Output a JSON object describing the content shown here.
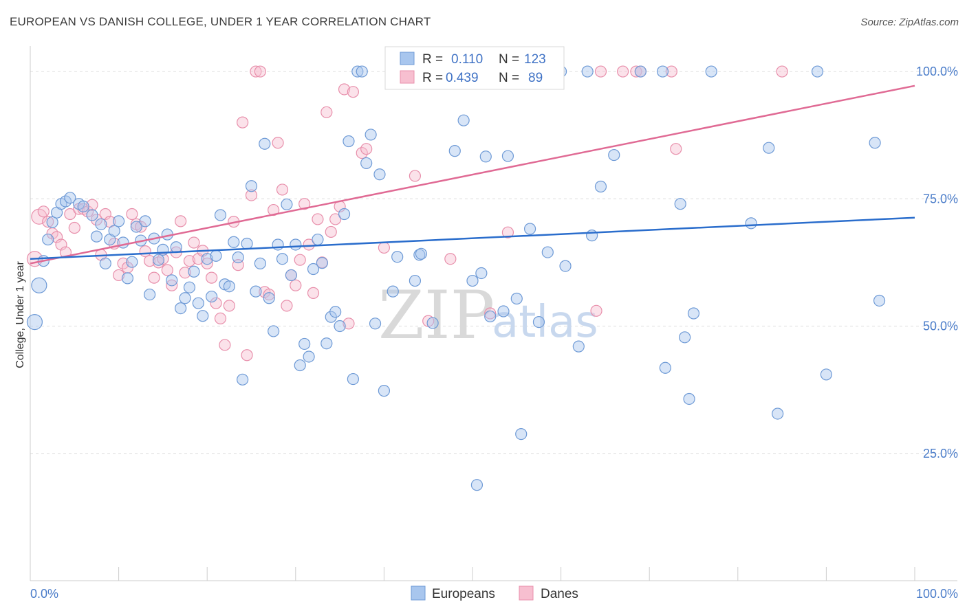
{
  "title": "EUROPEAN VS DANISH COLLEGE, UNDER 1 YEAR CORRELATION CHART",
  "source": "Source: ZipAtlas.com",
  "watermark": {
    "zip": "ZIP",
    "atlas": "atlas"
  },
  "colors": {
    "europeans_fill": "#a8c6ee",
    "europeans_stroke": "#6e9ad6",
    "europeans_line": "#2a6dcc",
    "danes_fill": "#f7bfd0",
    "danes_stroke": "#e88fab",
    "danes_line": "#e06a94",
    "axis_text": "#4a7cc9",
    "grid": "#dddddd"
  },
  "legend": {
    "row1": {
      "r_label": "R =",
      "r_value": "0.110",
      "n_label": "N =",
      "n_value": "123"
    },
    "row2": {
      "r_label": "R =",
      "r_value": "0.439",
      "n_label": "N =",
      "n_value": "89"
    }
  },
  "bottom_legend": {
    "europeans": "Europeans",
    "danes": "Danes"
  },
  "chart_data": {
    "type": "scatter",
    "title": "EUROPEAN VS DANISH COLLEGE, UNDER 1 YEAR CORRELATION CHART",
    "xlabel": "",
    "ylabel": "College, Under 1 year",
    "xlim": [
      0,
      100
    ],
    "ylim": [
      0,
      105
    ],
    "x_tick_labels": [
      "0.0%",
      "100.0%"
    ],
    "y_ticks": [
      25,
      50,
      75,
      100
    ],
    "y_tick_labels": [
      "25.0%",
      "50.0%",
      "75.0%",
      "100.0%"
    ],
    "grid": true,
    "legend_position": "top-center",
    "series": [
      {
        "name": "Europeans",
        "r": 0.11,
        "n": 123,
        "trend": {
          "x": [
            0,
            100
          ],
          "y": [
            63.2,
            71.3
          ]
        },
        "points": [
          [
            0.5,
            50.8
          ],
          [
            1.0,
            58.0
          ],
          [
            1.5,
            62.8
          ],
          [
            2.0,
            67.0
          ],
          [
            2.5,
            70.4
          ],
          [
            3.0,
            72.3
          ],
          [
            3.5,
            74.0
          ],
          [
            4.0,
            74.5
          ],
          [
            4.5,
            75.2
          ],
          [
            5.5,
            74.0
          ],
          [
            6.0,
            73.5
          ],
          [
            7.0,
            71.8
          ],
          [
            7.5,
            67.6
          ],
          [
            8.0,
            70.0
          ],
          [
            8.5,
            62.3
          ],
          [
            9.0,
            67.0
          ],
          [
            9.5,
            68.7
          ],
          [
            10.0,
            70.6
          ],
          [
            10.5,
            66.4
          ],
          [
            11.0,
            59.4
          ],
          [
            11.5,
            62.6
          ],
          [
            12.0,
            69.5
          ],
          [
            12.5,
            66.8
          ],
          [
            13.0,
            70.6
          ],
          [
            13.5,
            56.2
          ],
          [
            14.0,
            67.2
          ],
          [
            14.5,
            63.0
          ],
          [
            15.0,
            65.0
          ],
          [
            15.5,
            68.0
          ],
          [
            16.0,
            59.0
          ],
          [
            16.5,
            65.5
          ],
          [
            17.0,
            53.5
          ],
          [
            17.5,
            55.5
          ],
          [
            18.0,
            57.6
          ],
          [
            18.5,
            60.7
          ],
          [
            19.0,
            54.5
          ],
          [
            19.5,
            52.0
          ],
          [
            20.0,
            63.2
          ],
          [
            20.5,
            55.8
          ],
          [
            21.0,
            63.8
          ],
          [
            21.5,
            71.8
          ],
          [
            22.0,
            58.2
          ],
          [
            22.5,
            57.8
          ],
          [
            23.0,
            66.5
          ],
          [
            23.5,
            63.5
          ],
          [
            24.0,
            39.5
          ],
          [
            24.5,
            66.2
          ],
          [
            25.0,
            77.5
          ],
          [
            25.5,
            56.8
          ],
          [
            26.0,
            62.3
          ],
          [
            26.5,
            85.8
          ],
          [
            27.0,
            55.5
          ],
          [
            27.5,
            49.0
          ],
          [
            28.0,
            66.0
          ],
          [
            28.5,
            63.2
          ],
          [
            29.0,
            73.9
          ],
          [
            29.5,
            60.0
          ],
          [
            30.0,
            66.0
          ],
          [
            30.5,
            42.3
          ],
          [
            31.0,
            46.5
          ],
          [
            31.5,
            44.0
          ],
          [
            32.0,
            61.2
          ],
          [
            32.5,
            67.0
          ],
          [
            33.0,
            62.4
          ],
          [
            33.5,
            46.6
          ],
          [
            34.0,
            51.8
          ],
          [
            34.5,
            52.8
          ],
          [
            35.0,
            50.0
          ],
          [
            35.5,
            72.0
          ],
          [
            36.0,
            86.3
          ],
          [
            36.5,
            39.6
          ],
          [
            37.0,
            100.0
          ],
          [
            37.5,
            100.0
          ],
          [
            38.0,
            82.0
          ],
          [
            38.5,
            87.6
          ],
          [
            39.0,
            50.5
          ],
          [
            39.5,
            79.8
          ],
          [
            40.0,
            37.3
          ],
          [
            41.0,
            56.8
          ],
          [
            41.5,
            63.6
          ],
          [
            42.0,
            100.0
          ],
          [
            43.5,
            58.9
          ],
          [
            44.0,
            64.0
          ],
          [
            44.2,
            64.2
          ],
          [
            45.0,
            100.0
          ],
          [
            45.5,
            50.6
          ],
          [
            47.0,
            100.0
          ],
          [
            48.0,
            84.4
          ],
          [
            49.0,
            90.4
          ],
          [
            50.0,
            58.9
          ],
          [
            50.5,
            18.8
          ],
          [
            51.0,
            60.4
          ],
          [
            51.5,
            83.3
          ],
          [
            52.0,
            51.9
          ],
          [
            53.5,
            52.9
          ],
          [
            54.0,
            83.4
          ],
          [
            55.0,
            55.4
          ],
          [
            55.5,
            28.8
          ],
          [
            56.5,
            69.1
          ],
          [
            57.5,
            50.8
          ],
          [
            58.5,
            64.5
          ],
          [
            60.0,
            100.0
          ],
          [
            60.5,
            61.8
          ],
          [
            62.0,
            46.0
          ],
          [
            63.0,
            100.0
          ],
          [
            63.5,
            67.8
          ],
          [
            64.5,
            77.4
          ],
          [
            66.0,
            83.6
          ],
          [
            69.0,
            100.0
          ],
          [
            71.5,
            100.0
          ],
          [
            71.8,
            41.8
          ],
          [
            73.5,
            74.0
          ],
          [
            74.0,
            47.8
          ],
          [
            74.5,
            35.7
          ],
          [
            75.0,
            52.5
          ],
          [
            77.0,
            100.0
          ],
          [
            81.5,
            70.2
          ],
          [
            83.5,
            85.0
          ],
          [
            84.5,
            32.8
          ],
          [
            89.0,
            100.0
          ],
          [
            90.0,
            40.5
          ],
          [
            95.5,
            86.0
          ],
          [
            96.0,
            55.0
          ]
        ]
      },
      {
        "name": "Danes",
        "r": 0.439,
        "n": 89,
        "trend": {
          "x": [
            0,
            100
          ],
          "y": [
            62.3,
            97.2
          ]
        },
        "points": [
          [
            0.5,
            63.2
          ],
          [
            1.0,
            71.5
          ],
          [
            1.5,
            72.5
          ],
          [
            2.0,
            70.5
          ],
          [
            2.5,
            68.2
          ],
          [
            3.0,
            67.5
          ],
          [
            3.5,
            66.0
          ],
          [
            4.0,
            64.5
          ],
          [
            4.5,
            72.0
          ],
          [
            5.0,
            69.3
          ],
          [
            5.5,
            73.0
          ],
          [
            6.0,
            73.0
          ],
          [
            6.5,
            72.5
          ],
          [
            7.0,
            73.8
          ],
          [
            7.5,
            70.9
          ],
          [
            8.0,
            64.0
          ],
          [
            8.5,
            72.0
          ],
          [
            9.0,
            70.5
          ],
          [
            9.5,
            66.2
          ],
          [
            10.0,
            60.0
          ],
          [
            10.5,
            62.3
          ],
          [
            11.0,
            61.5
          ],
          [
            11.5,
            72.0
          ],
          [
            12.0,
            70.0
          ],
          [
            12.5,
            69.5
          ],
          [
            13.0,
            64.7
          ],
          [
            13.5,
            62.8
          ],
          [
            14.0,
            59.5
          ],
          [
            14.5,
            62.5
          ],
          [
            15.0,
            63.2
          ],
          [
            15.5,
            61.0
          ],
          [
            16.0,
            58.0
          ],
          [
            16.5,
            64.5
          ],
          [
            17.0,
            70.6
          ],
          [
            17.5,
            60.5
          ],
          [
            18.0,
            62.8
          ],
          [
            18.5,
            66.4
          ],
          [
            19.0,
            63.2
          ],
          [
            19.5,
            64.8
          ],
          [
            20.0,
            62.3
          ],
          [
            20.5,
            59.5
          ],
          [
            21.0,
            54.5
          ],
          [
            21.5,
            51.5
          ],
          [
            22.0,
            46.3
          ],
          [
            22.5,
            54.0
          ],
          [
            23.0,
            70.5
          ],
          [
            23.5,
            62.0
          ],
          [
            24.0,
            90.0
          ],
          [
            24.5,
            44.3
          ],
          [
            25.0,
            75.7
          ],
          [
            25.5,
            100.0
          ],
          [
            26.0,
            100.0
          ],
          [
            26.5,
            56.7
          ],
          [
            27.0,
            56.2
          ],
          [
            27.5,
            72.8
          ],
          [
            28.0,
            86.0
          ],
          [
            28.5,
            76.8
          ],
          [
            29.0,
            54.0
          ],
          [
            29.5,
            60.0
          ],
          [
            30.0,
            58.0
          ],
          [
            30.5,
            63.0
          ],
          [
            31.0,
            74.0
          ],
          [
            31.5,
            66.0
          ],
          [
            32.0,
            56.5
          ],
          [
            32.5,
            71.0
          ],
          [
            33.0,
            62.5
          ],
          [
            33.5,
            92.0
          ],
          [
            34.0,
            68.5
          ],
          [
            34.5,
            71.0
          ],
          [
            35.0,
            73.5
          ],
          [
            35.5,
            96.5
          ],
          [
            36.0,
            50.5
          ],
          [
            36.5,
            96.0
          ],
          [
            37.5,
            84.0
          ],
          [
            38.0,
            84.8
          ],
          [
            40.0,
            65.4
          ],
          [
            43.5,
            79.5
          ],
          [
            45.0,
            51.0
          ],
          [
            47.5,
            63.2
          ],
          [
            52.0,
            52.5
          ],
          [
            54.0,
            68.4
          ],
          [
            64.0,
            53.0
          ],
          [
            64.5,
            100.0
          ],
          [
            67.0,
            100.0
          ],
          [
            68.5,
            100.0
          ],
          [
            69.0,
            100.0
          ],
          [
            72.5,
            100.0
          ],
          [
            73.0,
            84.8
          ],
          [
            85.0,
            100.0
          ]
        ]
      }
    ]
  }
}
